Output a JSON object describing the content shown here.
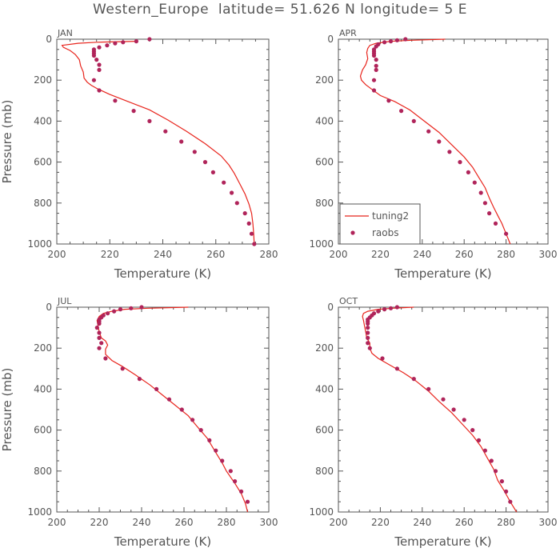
{
  "title": "Western_Europe  latitude= 51.626 N longitude= 5 E",
  "colors": {
    "model": "#e8241c",
    "obs": "#b0245a",
    "axis": "#555555"
  },
  "chart_data": [
    {
      "type": "line",
      "panel": "JAN",
      "xlabel": "Temperature (K)",
      "ylabel": "Pressure (mb)",
      "xlim": [
        200,
        280
      ],
      "xticks": [
        200,
        220,
        240,
        260,
        280
      ],
      "ylim": [
        1000,
        0
      ],
      "yticks": [
        0,
        200,
        400,
        600,
        800,
        1000
      ],
      "legend": false,
      "series": [
        {
          "name": "tuning2",
          "style": "line",
          "points": [
            [
              230,
              10
            ],
            [
              215,
              15
            ],
            [
              208,
              20
            ],
            [
              202,
              30
            ],
            [
              202.5,
              40
            ],
            [
              205,
              55
            ],
            [
              207,
              75
            ],
            [
              208.5,
              100
            ],
            [
              209,
              130
            ],
            [
              210,
              160
            ],
            [
              210.3,
              190
            ],
            [
              211.5,
              210
            ],
            [
              213,
              225
            ],
            [
              215,
              240
            ],
            [
              220,
              270
            ],
            [
              227,
              305
            ],
            [
              235,
              345
            ],
            [
              242,
              395
            ],
            [
              249,
              450
            ],
            [
              256,
              510
            ],
            [
              262,
              570
            ],
            [
              265,
              615
            ],
            [
              267,
              655
            ],
            [
              269,
              705
            ],
            [
              271,
              755
            ],
            [
              272.5,
              805
            ],
            [
              273.5,
              850
            ],
            [
              274,
              900
            ],
            [
              274.3,
              950
            ],
            [
              274.5,
              1000
            ]
          ]
        },
        {
          "name": "raobs",
          "style": "markers",
          "points": [
            [
              235,
              0
            ],
            [
              230,
              10
            ],
            [
              225,
              15
            ],
            [
              222,
              20
            ],
            [
              219,
              30
            ],
            [
              216,
              40
            ],
            [
              214,
              50
            ],
            [
              214,
              60
            ],
            [
              214,
              70
            ],
            [
              214,
              80
            ],
            [
              215,
              100
            ],
            [
              216,
              125
            ],
            [
              216,
              150
            ],
            [
              214,
              200
            ],
            [
              216,
              250
            ],
            [
              222,
              300
            ],
            [
              229,
              350
            ],
            [
              235,
              400
            ],
            [
              241,
              450
            ],
            [
              247,
              500
            ],
            [
              252,
              550
            ],
            [
              256,
              600
            ],
            [
              259,
              650
            ],
            [
              263,
              700
            ],
            [
              266,
              750
            ],
            [
              268,
              800
            ],
            [
              271,
              850
            ],
            [
              272.5,
              900
            ],
            [
              273.5,
              950
            ],
            [
              274.5,
              1000
            ]
          ]
        }
      ]
    },
    {
      "type": "line",
      "panel": "APR",
      "xlabel": "Temperature (K)",
      "ylabel": "",
      "xlim": [
        200,
        300
      ],
      "xticks": [
        200,
        220,
        240,
        260,
        280,
        300
      ],
      "ylim": [
        1000,
        0
      ],
      "yticks": [
        0,
        200,
        400,
        600,
        800,
        1000
      ],
      "legend": true,
      "legend_entries": [
        "tuning2",
        "raobs"
      ],
      "series": [
        {
          "name": "tuning2",
          "style": "line",
          "points": [
            [
              251,
              0
            ],
            [
              235,
              5
            ],
            [
              225,
              10
            ],
            [
              218,
              20
            ],
            [
              215,
              30
            ],
            [
              214,
              45
            ],
            [
              213.5,
              65
            ],
            [
              214,
              95
            ],
            [
              213,
              125
            ],
            [
              211.5,
              150
            ],
            [
              210.5,
              180
            ],
            [
              211,
              200
            ],
            [
              213,
              222
            ],
            [
              216,
              245
            ],
            [
              220,
              275
            ],
            [
              227,
              305
            ],
            [
              234,
              345
            ],
            [
              241,
              400
            ],
            [
              248,
              455
            ],
            [
              254,
              515
            ],
            [
              260,
              575
            ],
            [
              264,
              625
            ],
            [
              267,
              675
            ],
            [
              270,
              725
            ],
            [
              272,
              775
            ],
            [
              274,
              820
            ],
            [
              276,
              860
            ],
            [
              278,
              900
            ],
            [
              280,
              950
            ],
            [
              282,
              1000
            ]
          ]
        },
        {
          "name": "raobs",
          "style": "markers",
          "points": [
            [
              232,
              0
            ],
            [
              228,
              5
            ],
            [
              225,
              10
            ],
            [
              222,
              15
            ],
            [
              219,
              25
            ],
            [
              218,
              35
            ],
            [
              217,
              50
            ],
            [
              217,
              60
            ],
            [
              217,
              70
            ],
            [
              217,
              80
            ],
            [
              218,
              100
            ],
            [
              218,
              130
            ],
            [
              218,
              150
            ],
            [
              217,
              200
            ],
            [
              217,
              250
            ],
            [
              224,
              300
            ],
            [
              230,
              350
            ],
            [
              236,
              400
            ],
            [
              243,
              450
            ],
            [
              248,
              500
            ],
            [
              253,
              550
            ],
            [
              258,
              600
            ],
            [
              262,
              650
            ],
            [
              265,
              700
            ],
            [
              268,
              750
            ],
            [
              270,
              800
            ],
            [
              272,
              850
            ],
            [
              275,
              900
            ],
            [
              280,
              950
            ]
          ]
        }
      ]
    },
    {
      "type": "line",
      "panel": "JUL",
      "xlabel": "Temperature (K)",
      "ylabel": "Pressure (mb)",
      "xlim": [
        200,
        300
      ],
      "xticks": [
        200,
        220,
        240,
        260,
        280,
        300
      ],
      "ylim": [
        1000,
        0
      ],
      "yticks": [
        0,
        200,
        400,
        600,
        800,
        1000
      ],
      "legend": false,
      "series": [
        {
          "name": "tuning2",
          "style": "line",
          "points": [
            [
              262,
              0
            ],
            [
              243,
              5
            ],
            [
              232,
              10
            ],
            [
              226,
              20
            ],
            [
              222,
              30
            ],
            [
              220,
              45
            ],
            [
              219,
              65
            ],
            [
              219.5,
              95
            ],
            [
              220,
              120
            ],
            [
              221,
              150
            ],
            [
              223,
              165
            ],
            [
              224,
              185
            ],
            [
              223,
              205
            ],
            [
              223,
              230
            ],
            [
              226,
              260
            ],
            [
              231,
              290
            ],
            [
              237,
              330
            ],
            [
              244,
              380
            ],
            [
              250,
              430
            ],
            [
              256,
              480
            ],
            [
              262,
              530
            ],
            [
              266,
              580
            ],
            [
              271,
              640
            ],
            [
              275,
              710
            ],
            [
              278,
              760
            ],
            [
              280,
              800
            ],
            [
              284,
              860
            ],
            [
              287,
              910
            ],
            [
              289,
              960
            ],
            [
              290,
              1000
            ]
          ]
        },
        {
          "name": "raobs",
          "style": "markers",
          "points": [
            [
              240,
              0
            ],
            [
              235,
              5
            ],
            [
              230,
              10
            ],
            [
              227,
              20
            ],
            [
              224,
              30
            ],
            [
              222,
              40
            ],
            [
              221,
              50
            ],
            [
              220,
              60
            ],
            [
              220,
              70
            ],
            [
              220,
              80
            ],
            [
              219,
              100
            ],
            [
              220,
              125
            ],
            [
              220,
              150
            ],
            [
              221,
              175
            ],
            [
              220,
              200
            ],
            [
              223,
              250
            ],
            [
              231,
              300
            ],
            [
              239,
              350
            ],
            [
              247,
              400
            ],
            [
              253,
              450
            ],
            [
              259,
              500
            ],
            [
              264,
              550
            ],
            [
              268,
              600
            ],
            [
              272,
              650
            ],
            [
              275,
              700
            ],
            [
              278,
              750
            ],
            [
              282,
              800
            ],
            [
              284,
              850
            ],
            [
              287,
              900
            ],
            [
              290,
              950
            ]
          ]
        }
      ]
    },
    {
      "type": "line",
      "panel": "OCT",
      "xlabel": "Temperature (K)",
      "ylabel": "",
      "xlim": [
        200,
        300
      ],
      "xticks": [
        200,
        220,
        240,
        260,
        280,
        300
      ],
      "ylim": [
        1000,
        0
      ],
      "yticks": [
        0,
        200,
        400,
        600,
        800,
        1000
      ],
      "legend": false,
      "series": [
        {
          "name": "tuning2",
          "style": "line",
          "points": [
            [
              236,
              0
            ],
            [
              226,
              5
            ],
            [
              219,
              10
            ],
            [
              214,
              20
            ],
            [
              212,
              30
            ],
            [
              211.5,
              45
            ],
            [
              212,
              65
            ],
            [
              212.5,
              95
            ],
            [
              213,
              120
            ],
            [
              213.5,
              150
            ],
            [
              215,
              175
            ],
            [
              215,
              200
            ],
            [
              216,
              225
            ],
            [
              219,
              250
            ],
            [
              225,
              285
            ],
            [
              231,
              320
            ],
            [
              237,
              360
            ],
            [
              243,
              410
            ],
            [
              248,
              460
            ],
            [
              254,
              515
            ],
            [
              259,
              570
            ],
            [
              264,
              625
            ],
            [
              268,
              680
            ],
            [
              271,
              735
            ],
            [
              274,
              790
            ],
            [
              276,
              845
            ],
            [
              279,
              895
            ],
            [
              282,
              950
            ],
            [
              285,
              1000
            ]
          ]
        },
        {
          "name": "raobs",
          "style": "markers",
          "points": [
            [
              228,
              0
            ],
            [
              225,
              5
            ],
            [
              222,
              10
            ],
            [
              219,
              20
            ],
            [
              217,
              30
            ],
            [
              216,
              40
            ],
            [
              215,
              50
            ],
            [
              214,
              60
            ],
            [
              214,
              70
            ],
            [
              214,
              80
            ],
            [
              214,
              100
            ],
            [
              214,
              125
            ],
            [
              214,
              150
            ],
            [
              214,
              175
            ],
            [
              215,
              200
            ],
            [
              221,
              250
            ],
            [
              228,
              300
            ],
            [
              236,
              350
            ],
            [
              243,
              400
            ],
            [
              250,
              450
            ],
            [
              255,
              500
            ],
            [
              260,
              550
            ],
            [
              264,
              600
            ],
            [
              267,
              650
            ],
            [
              270,
              700
            ],
            [
              273,
              750
            ],
            [
              275,
              800
            ],
            [
              278,
              850
            ],
            [
              280,
              900
            ],
            [
              282,
              950
            ]
          ]
        }
      ]
    }
  ]
}
